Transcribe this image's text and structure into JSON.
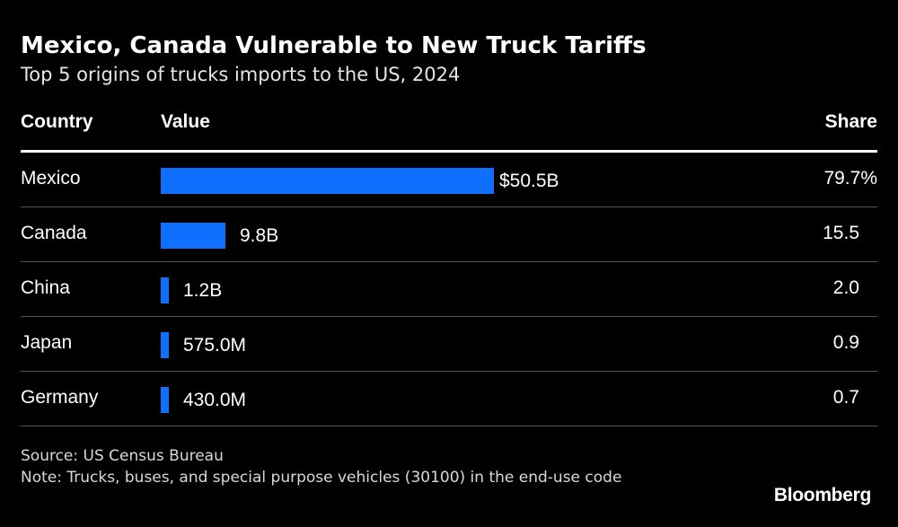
{
  "chart_data": {
    "type": "bar",
    "orientation": "horizontal",
    "title": "Mexico, Canada Vulnerable to New Truck Tariffs",
    "subtitle": "Top 5 origins of trucks imports to the US, 2024",
    "columns": {
      "country": "Country",
      "value": "Value",
      "share": "Share"
    },
    "categories": [
      "Mexico",
      "Canada",
      "China",
      "Japan",
      "Germany"
    ],
    "values": [
      50.5,
      9.8,
      1.2,
      0.575,
      0.43
    ],
    "value_labels": [
      "$50.5B",
      "9.8B",
      "1.2B",
      "575.0M",
      "430.0M"
    ],
    "shares": [
      79.7,
      15.5,
      2.0,
      0.9,
      0.7
    ],
    "share_labels": [
      "79.7%",
      "15.5",
      "2.0",
      "0.9",
      "0.7"
    ],
    "bar_color": "#0f6fff"
  },
  "footer": {
    "source": "Source: US Census Bureau",
    "note": "Note: Trucks, buses, and special purpose vehicles (30100) in the end-use code",
    "logo": "Bloomberg"
  }
}
